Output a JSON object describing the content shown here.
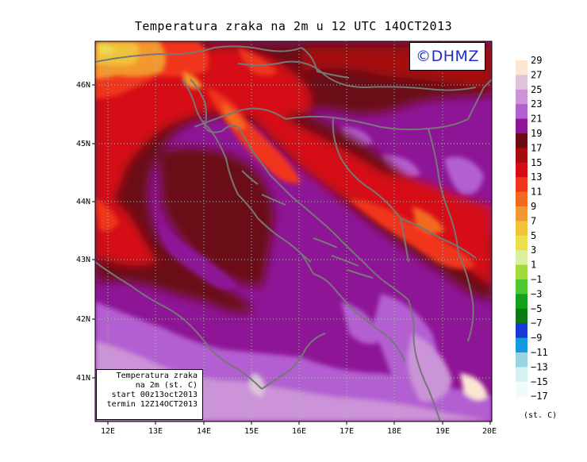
{
  "title": "Temperatura zraka na 2m u 12 UTC 14OCT2013",
  "logo": "©DHMZ",
  "info_box": {
    "line1": "Temperatura zraka",
    "line2": "na 2m (st. C)",
    "line3": "start 00z13oct2013",
    "line4": "termin 12Z14OCT2013"
  },
  "axes": {
    "x_ticks": [
      "12E",
      "13E",
      "14E",
      "15E",
      "16E",
      "17E",
      "18E",
      "19E",
      "20E"
    ],
    "y_ticks": [
      "46N",
      "45N",
      "44N",
      "43N",
      "42N",
      "41N"
    ]
  },
  "colorbar": {
    "labels": [
      "29",
      "27",
      "25",
      "23",
      "21",
      "19",
      "17",
      "15",
      "13",
      "11",
      "9",
      "7",
      "5",
      "3",
      "1",
      "−1",
      "−3",
      "−5",
      "−7",
      "−9",
      "−11",
      "−13",
      "−15",
      "−17"
    ],
    "colors": [
      "#fbe6d4",
      "#dcc5da",
      "#cc93d8",
      "#b35fd1",
      "#8e1596",
      "#6b0b14",
      "#a60c10",
      "#d60e12",
      "#f0351c",
      "#f26a22",
      "#f2982e",
      "#f0c23a",
      "#eadf4c",
      "#dceea0",
      "#a2d93c",
      "#4ec82e",
      "#11a11c",
      "#0b7a12",
      "#1a3ad6",
      "#1599e0",
      "#9ad4e0",
      "#d5f1f2",
      "#f2fbfb"
    ],
    "units": "(st. C)"
  }
}
